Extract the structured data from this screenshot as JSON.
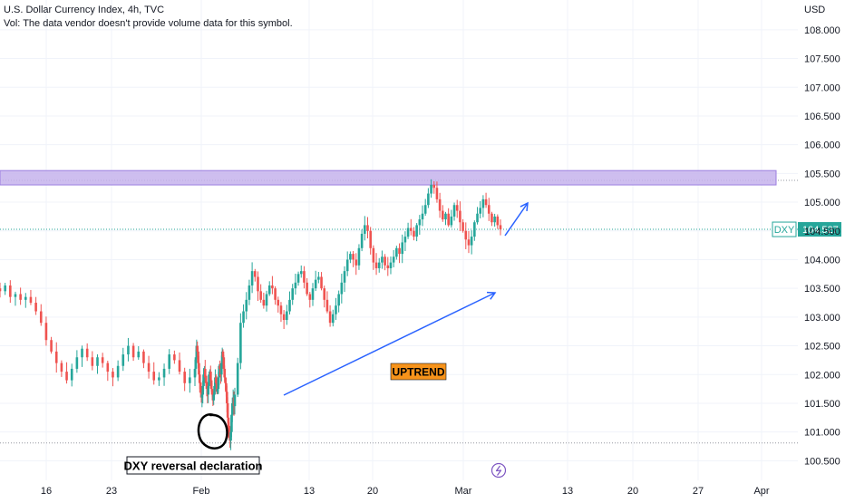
{
  "legend": {
    "title": "U.S. Dollar Currency Index, 4h, TVC",
    "volume_note": "Vol: The data vendor doesn't provide volume data for this symbol."
  },
  "colors": {
    "up": "#26a69a",
    "down": "#ef5350",
    "zone_fill": "#c5b3ec",
    "zone_stroke": "#9c7fe0",
    "arrow": "#2962ff",
    "price_tag": "#26a69a",
    "label_orange": "#f7931a",
    "grid": "#f0f3fa",
    "circle": "#000000"
  },
  "chart_data": {
    "type": "candlestick",
    "symbol": "DXY",
    "currency": "USD",
    "timeframe": "4h",
    "last_price": "104.527",
    "y_ticks": [
      "108.000",
      "107.500",
      "107.000",
      "106.500",
      "106.000",
      "105.500",
      "105.000",
      "104.500",
      "104.000",
      "103.500",
      "103.000",
      "102.500",
      "102.000",
      "101.500",
      "101.000",
      "100.500"
    ],
    "ylim": [
      100.35,
      108.35
    ],
    "x_ticks": [
      "16",
      "23",
      "Feb",
      "13",
      "20",
      "Mar",
      "13",
      "20",
      "27",
      "Apr"
    ],
    "resistance_zone": [
      105.3,
      105.55
    ],
    "dotted_levels": [
      105.38,
      104.527,
      100.81
    ],
    "annotations": {
      "uptrend_label": "UPTREND",
      "reversal_label": "DXY reversal declaration"
    },
    "path": [
      [
        103.45,
        103.55,
        103.35,
        103.4,
        103.3,
        103.35,
        103.25,
        103.1,
        102.9,
        102.6,
        102.4,
        102.2,
        102.05,
        101.9,
        102.1,
        102.3,
        102.45,
        102.3,
        102.15,
        102.3,
        102.2,
        102.05,
        101.95,
        102.15,
        102.35,
        102.5,
        102.3,
        102.4,
        102.2,
        102.05,
        101.9,
        101.95,
        102.1,
        102.35,
        102.25,
        102.05,
        101.85,
        101.95,
        102.1
      ],
      [
        102.3,
        102.5,
        102.4,
        102.2,
        102.0,
        101.85,
        101.75,
        101.6,
        101.65,
        101.8,
        102.0,
        102.1,
        101.95,
        101.85,
        101.75,
        101.65,
        101.8,
        102.0,
        102.05,
        101.9,
        101.75,
        101.65,
        101.55,
        101.65,
        101.8,
        101.95,
        101.85,
        101.7,
        101.75,
        101.95,
        102.15,
        102.1,
        102.0,
        102.2,
        102.4,
        102.3,
        102.1,
        101.95,
        101.85,
        101.7,
        101.5,
        101.25,
        101.05,
        100.95,
        100.85,
        101.0,
        101.3,
        101.5,
        101.6,
        101.45
      ],
      [
        101.65,
        102.2,
        102.9,
        103.1,
        103.3,
        103.55,
        103.8,
        103.7,
        103.45,
        103.3,
        103.2,
        103.4,
        103.55,
        103.5,
        103.3,
        103.2,
        103.05,
        102.95,
        103.1,
        103.3,
        103.5,
        103.6,
        103.75,
        103.8,
        103.6,
        103.4,
        103.3,
        103.5,
        103.65,
        103.7,
        103.5,
        103.3,
        103.1,
        102.9,
        103.05,
        103.2,
        103.4,
        103.6,
        103.8,
        104.0,
        104.1,
        104.0,
        103.9,
        104.2,
        104.45,
        104.6,
        104.5,
        104.2,
        103.95,
        103.85,
        103.95,
        104.05,
        103.9,
        103.85,
        103.95,
        104.05,
        104.2,
        104.1,
        104.3,
        104.4,
        104.55,
        104.5,
        104.4,
        104.6,
        104.7,
        104.8,
        104.95,
        105.15,
        105.3,
        105.25,
        105.05,
        104.85,
        104.7,
        104.8,
        104.6,
        104.75,
        104.95,
        104.85,
        104.65,
        104.5,
        104.35,
        104.25,
        104.4,
        104.65,
        104.8,
        104.9,
        105.05,
        104.95,
        104.8,
        104.65,
        104.75,
        104.6,
        104.527
      ]
    ]
  }
}
